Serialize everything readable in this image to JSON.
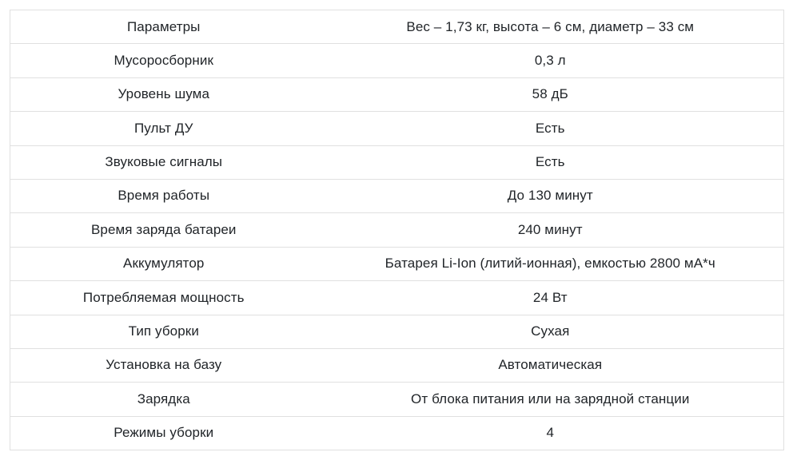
{
  "specs_table": {
    "columns": [
      "param",
      "value"
    ],
    "rows": [
      {
        "param": "Параметры",
        "value": "Вес – 1,73 кг, высота – 6 см, диаметр – 33 см"
      },
      {
        "param": "Мусоросборник",
        "value": "0,3 л"
      },
      {
        "param": "Уровень шума",
        "value": "58 дБ"
      },
      {
        "param": "Пульт ДУ",
        "value": "Есть"
      },
      {
        "param": "Звуковые сигналы",
        "value": "Есть"
      },
      {
        "param": "Время работы",
        "value": "До 130 минут"
      },
      {
        "param": "Время заряда батареи",
        "value": "240 минут"
      },
      {
        "param": "Аккумулятор",
        "value": "Батарея Li-Ion (литий-ионная), емкостью 2800 мА*ч"
      },
      {
        "param": "Потребляемая мощность",
        "value": "24 Вт"
      },
      {
        "param": "Тип уборки",
        "value": "Сухая"
      },
      {
        "param": "Установка на базу",
        "value": "Автоматическая"
      },
      {
        "param": "Зарядка",
        "value": "От блока питания или на зарядной станции"
      },
      {
        "param": "Режимы уборки",
        "value": "4"
      }
    ],
    "colors": {
      "text": "#212529",
      "border": "#e0e0e0",
      "background": "#ffffff"
    }
  }
}
